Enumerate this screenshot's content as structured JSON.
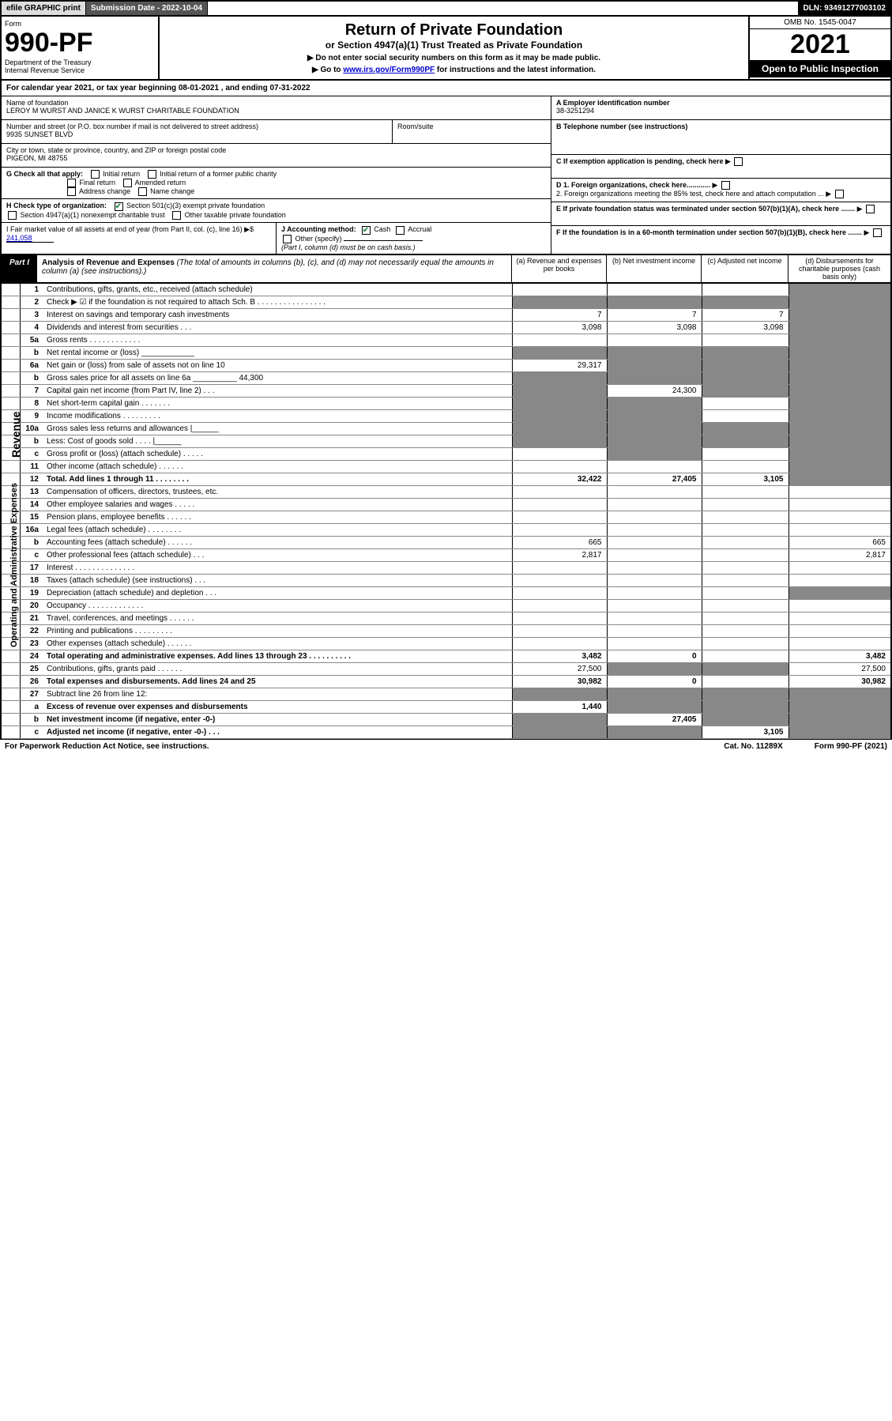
{
  "topbar": {
    "efile": "efile GRAPHIC print",
    "submission": "Submission Date - 2022-10-04",
    "dln": "DLN: 93491277003102"
  },
  "header": {
    "form_label": "Form",
    "form_number": "990-PF",
    "dept": "Department of the Treasury",
    "irs": "Internal Revenue Service",
    "title": "Return of Private Foundation",
    "subtitle": "or Section 4947(a)(1) Trust Treated as Private Foundation",
    "note1": "▶ Do not enter social security numbers on this form as it may be made public.",
    "note2_prefix": "▶ Go to ",
    "note2_link": "www.irs.gov/Form990PF",
    "note2_suffix": " for instructions and the latest information.",
    "omb": "OMB No. 1545-0047",
    "year": "2021",
    "inspection": "Open to Public Inspection"
  },
  "calendar": "For calendar year 2021, or tax year beginning 08-01-2021              , and ending 07-31-2022",
  "info": {
    "name_label": "Name of foundation",
    "name": "LEROY M WURST AND JANICE K WURST CHARITABLE FOUNDATION",
    "addr_label": "Number and street (or P.O. box number if mail is not delivered to street address)",
    "addr": "9935 SUNSET BLVD",
    "room_label": "Room/suite",
    "city_label": "City or town, state or province, country, and ZIP or foreign postal code",
    "city": "PIGEON, MI  48755",
    "A": "A Employer identification number",
    "A_val": "38-3251294",
    "B": "B Telephone number (see instructions)",
    "C": "C If exemption application is pending, check here",
    "D1": "D 1. Foreign organizations, check here............",
    "D2": "2. Foreign organizations meeting the 85% test, check here and attach computation ...",
    "E": "E  If private foundation status was terminated under section 507(b)(1)(A), check here .......",
    "F": "F  If the foundation is in a 60-month termination under section 507(b)(1)(B), check here .......",
    "G": "G Check all that apply:",
    "G1": "Initial return",
    "G2": "Initial return of a former public charity",
    "G3": "Final return",
    "G4": "Amended return",
    "G5": "Address change",
    "G6": "Name change",
    "H": "H Check type of organization:",
    "H1": "Section 501(c)(3) exempt private foundation",
    "H2": "Section 4947(a)(1) nonexempt charitable trust",
    "H3": "Other taxable private foundation",
    "I": "I Fair market value of all assets at end of year (from Part II, col. (c), line 16) ▶$",
    "I_val": "241,058",
    "J": "J Accounting method:",
    "J1": "Cash",
    "J2": "Accrual",
    "J3": "Other (specify)",
    "J_note": "(Part I, column (d) must be on cash basis.)"
  },
  "part1": {
    "tag": "Part I",
    "title": "Analysis of Revenue and Expenses",
    "title_note": "(The total of amounts in columns (b), (c), and (d) may not necessarily equal the amounts in column (a) (see instructions).)",
    "col_a": "(a)  Revenue and expenses per books",
    "col_b": "(b)  Net investment income",
    "col_c": "(c)  Adjusted net income",
    "col_d": "(d)  Disbursements for charitable purposes (cash basis only)",
    "side_rev": "Revenue",
    "side_exp": "Operating and Administrative Expenses",
    "rows": [
      {
        "n": "1",
        "l": "Contributions, gifts, grants, etc., received (attach schedule)",
        "a": "",
        "b": "",
        "c": "",
        "d": "g"
      },
      {
        "n": "2",
        "l": "Check ▶ ☑ if the foundation is not required to attach Sch. B   .   .   .   .   .   .   .   .   .   .   .   .   .   .   .   .",
        "a": "g",
        "b": "g",
        "c": "g",
        "d": "g"
      },
      {
        "n": "3",
        "l": "Interest on savings and temporary cash investments",
        "a": "7",
        "b": "7",
        "c": "7",
        "d": "g"
      },
      {
        "n": "4",
        "l": "Dividends and interest from securities   .   .   .",
        "a": "3,098",
        "b": "3,098",
        "c": "3,098",
        "d": "g"
      },
      {
        "n": "5a",
        "l": "Gross rents   .   .   .   .   .   .   .   .   .   .   .   .",
        "a": "",
        "b": "",
        "c": "",
        "d": "g"
      },
      {
        "n": "b",
        "l": "Net rental income or (loss)  ____________",
        "a": "g",
        "b": "g",
        "c": "g",
        "d": "g"
      },
      {
        "n": "6a",
        "l": "Net gain or (loss) from sale of assets not on line 10",
        "a": "29,317",
        "b": "g",
        "c": "g",
        "d": "g"
      },
      {
        "n": "b",
        "l": "Gross sales price for all assets on line 6a __________ 44,300",
        "a": "g",
        "b": "g",
        "c": "g",
        "d": "g"
      },
      {
        "n": "7",
        "l": "Capital gain net income (from Part IV, line 2)   .   .   .",
        "a": "g",
        "b": "24,300",
        "c": "g",
        "d": "g"
      },
      {
        "n": "8",
        "l": "Net short-term capital gain   .   .   .   .   .   .   .",
        "a": "g",
        "b": "g",
        "c": "",
        "d": "g"
      },
      {
        "n": "9",
        "l": "Income modifications   .   .   .   .   .   .   .   .   .",
        "a": "g",
        "b": "g",
        "c": "",
        "d": "g"
      },
      {
        "n": "10a",
        "l": "Gross sales less returns and allowances  |______",
        "a": "g",
        "b": "g",
        "c": "g",
        "d": "g"
      },
      {
        "n": "b",
        "l": "Less: Cost of goods sold   .   .   .   .   |______",
        "a": "g",
        "b": "g",
        "c": "g",
        "d": "g"
      },
      {
        "n": "c",
        "l": "Gross profit or (loss) (attach schedule)   .   .   .   .   .",
        "a": "",
        "b": "g",
        "c": "",
        "d": "g"
      },
      {
        "n": "11",
        "l": "Other income (attach schedule)   .   .   .   .   .   .",
        "a": "",
        "b": "",
        "c": "",
        "d": "g"
      },
      {
        "n": "12",
        "l": "Total. Add lines 1 through 11   .   .   .   .   .   .   .   .",
        "a": "32,422",
        "b": "27,405",
        "c": "3,105",
        "d": "g",
        "bold": true
      },
      {
        "n": "13",
        "l": "Compensation of officers, directors, trustees, etc.",
        "a": "",
        "b": "",
        "c": "",
        "d": ""
      },
      {
        "n": "14",
        "l": "Other employee salaries and wages   .   .   .   .   .",
        "a": "",
        "b": "",
        "c": "",
        "d": ""
      },
      {
        "n": "15",
        "l": "Pension plans, employee benefits   .   .   .   .   .   .",
        "a": "",
        "b": "",
        "c": "",
        "d": ""
      },
      {
        "n": "16a",
        "l": "Legal fees (attach schedule)   .   .   .   .   .   .   .   .",
        "a": "",
        "b": "",
        "c": "",
        "d": ""
      },
      {
        "n": "b",
        "l": "Accounting fees (attach schedule)   .   .   .   .   .   .",
        "a": "665",
        "b": "",
        "c": "",
        "d": "665"
      },
      {
        "n": "c",
        "l": "Other professional fees (attach schedule)   .   .   .",
        "a": "2,817",
        "b": "",
        "c": "",
        "d": "2,817"
      },
      {
        "n": "17",
        "l": "Interest   .   .   .   .   .   .   .   .   .   .   .   .   .   .",
        "a": "",
        "b": "",
        "c": "",
        "d": ""
      },
      {
        "n": "18",
        "l": "Taxes (attach schedule) (see instructions)   .   .   .",
        "a": "",
        "b": "",
        "c": "",
        "d": ""
      },
      {
        "n": "19",
        "l": "Depreciation (attach schedule) and depletion   .   .   .",
        "a": "",
        "b": "",
        "c": "",
        "d": "g"
      },
      {
        "n": "20",
        "l": "Occupancy   .   .   .   .   .   .   .   .   .   .   .   .   .",
        "a": "",
        "b": "",
        "c": "",
        "d": ""
      },
      {
        "n": "21",
        "l": "Travel, conferences, and meetings   .   .   .   .   .   .",
        "a": "",
        "b": "",
        "c": "",
        "d": ""
      },
      {
        "n": "22",
        "l": "Printing and publications   .   .   .   .   .   .   .   .   .",
        "a": "",
        "b": "",
        "c": "",
        "d": ""
      },
      {
        "n": "23",
        "l": "Other expenses (attach schedule)   .   .   .   .   .   .",
        "a": "",
        "b": "",
        "c": "",
        "d": ""
      },
      {
        "n": "24",
        "l": "Total operating and administrative expenses. Add lines 13 through 23   .   .   .   .   .   .   .   .   .   .",
        "a": "3,482",
        "b": "0",
        "c": "",
        "d": "3,482",
        "bold": true
      },
      {
        "n": "25",
        "l": "Contributions, gifts, grants paid   .   .   .   .   .   .",
        "a": "27,500",
        "b": "g",
        "c": "g",
        "d": "27,500"
      },
      {
        "n": "26",
        "l": "Total expenses and disbursements. Add lines 24 and 25",
        "a": "30,982",
        "b": "0",
        "c": "",
        "d": "30,982",
        "bold": true
      },
      {
        "n": "27",
        "l": "Subtract line 26 from line 12:",
        "a": "g",
        "b": "g",
        "c": "g",
        "d": "g"
      },
      {
        "n": "a",
        "l": "Excess of revenue over expenses and disbursements",
        "a": "1,440",
        "b": "g",
        "c": "g",
        "d": "g",
        "bold": true
      },
      {
        "n": "b",
        "l": "Net investment income (if negative, enter -0-)",
        "a": "g",
        "b": "27,405",
        "c": "g",
        "d": "g",
        "bold": true
      },
      {
        "n": "c",
        "l": "Adjusted net income (if negative, enter -0-)   .   .   .",
        "a": "g",
        "b": "g",
        "c": "3,105",
        "d": "g",
        "bold": true
      }
    ]
  },
  "footer": {
    "left": "For Paperwork Reduction Act Notice, see instructions.",
    "mid": "Cat. No. 11289X",
    "right": "Form 990-PF (2021)"
  },
  "colors": {
    "grey_cell": "#999999",
    "black": "#000000",
    "link": "#0000cc",
    "check": "#0a7a3a"
  }
}
